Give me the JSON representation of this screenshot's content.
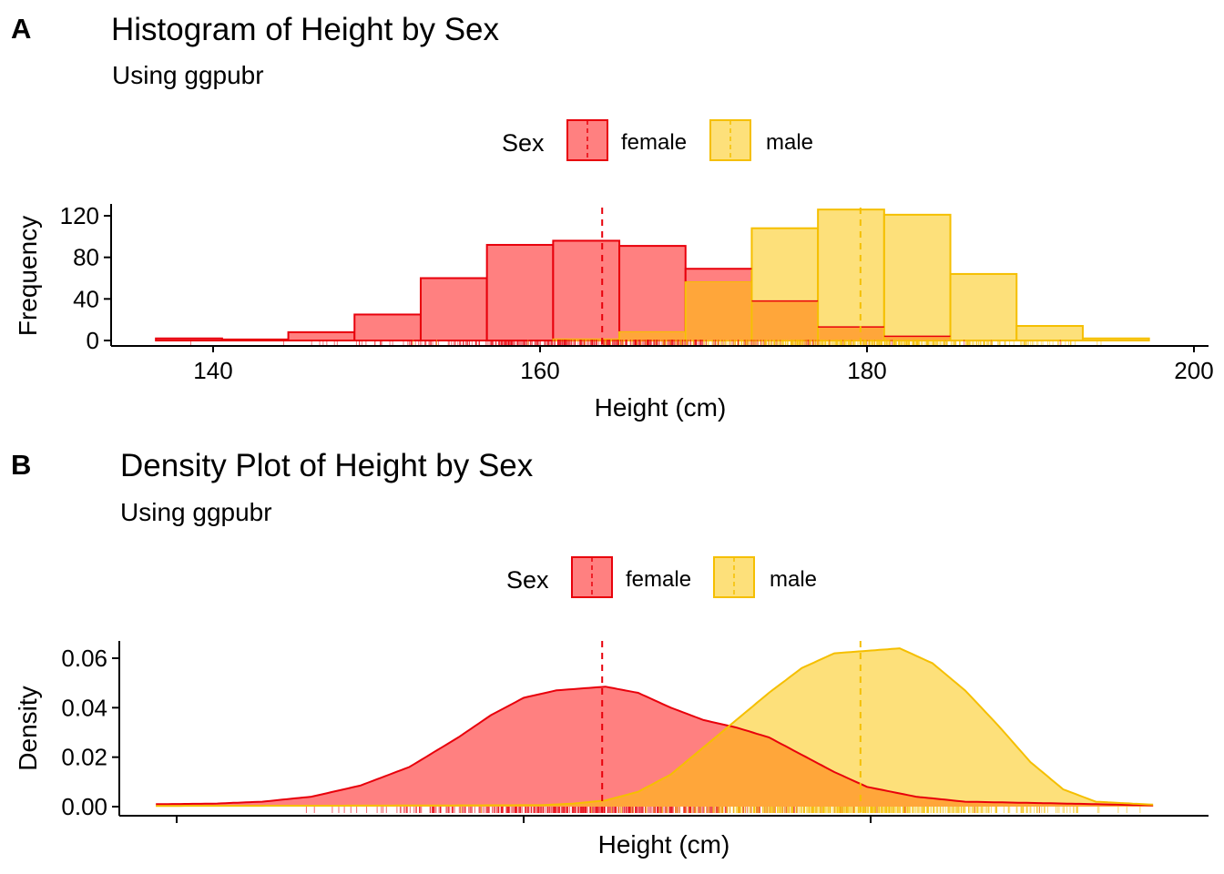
{
  "panels": {
    "a": {
      "tag": "A",
      "title": "Histogram of Height by Sex",
      "subtitle": "Using ggpubr",
      "legend": {
        "title": "Sex",
        "items": [
          "female",
          "male"
        ]
      },
      "xlabel": "Height (cm)",
      "ylabel": "Frequency"
    },
    "b": {
      "tag": "B",
      "title": "Density Plot of Height by Sex",
      "subtitle": "Using ggpubr",
      "legend": {
        "title": "Sex",
        "items": [
          "female",
          "male"
        ]
      },
      "xlabel": "Height (cm)",
      "ylabel": "Density"
    }
  },
  "colors": {
    "female_fill": "#FF8080",
    "female_line": "#E8000B",
    "male_fill": "#FDE07A",
    "male_line": "#F5BF00",
    "overlap_fill": "#FFA63A"
  },
  "chart_data": [
    {
      "type": "histogram",
      "title": "Histogram of Height by Sex",
      "subtitle": "Using ggpubr",
      "xlabel": "Height (cm)",
      "ylabel": "Frequency",
      "legend_title": "Sex",
      "legend_position": "top",
      "xlim": [
        134,
        201
      ],
      "ylim": [
        0,
        130
      ],
      "x_ticks": [
        140,
        160,
        180,
        200
      ],
      "y_ticks": [
        0,
        40,
        80,
        120
      ],
      "bin_edges": [
        136.5,
        140.55,
        144.6,
        148.65,
        152.7,
        156.75,
        160.8,
        164.85,
        168.9,
        172.95,
        177.0,
        181.05,
        185.1,
        189.15,
        193.2,
        197.25
      ],
      "series": [
        {
          "name": "female",
          "counts": [
            2,
            1,
            8,
            25,
            60,
            92,
            96,
            91,
            69,
            38,
            13,
            4,
            0,
            0,
            0
          ],
          "mean": 163.8
        },
        {
          "name": "male",
          "counts": [
            0,
            0,
            0,
            0,
            0,
            0,
            1,
            8,
            56,
            108,
            126,
            121,
            64,
            14,
            2
          ],
          "mean": 179.6
        }
      ],
      "rug": true,
      "grid": false
    },
    {
      "type": "area",
      "title": "Density Plot of Height by Sex",
      "subtitle": "Using ggpubr",
      "xlabel": "Height (cm)",
      "ylabel": "Density",
      "legend_title": "Sex",
      "legend_position": "top",
      "xlim": [
        134,
        201
      ],
      "ylim": [
        0,
        0.066
      ],
      "x_ticks": [
        140,
        160,
        180,
        200
      ],
      "x_tick_labels_shown": false,
      "y_ticks": [
        0.0,
        0.02,
        0.04,
        0.06
      ],
      "y_tick_labels": [
        "0.00",
        "0.02",
        "0.04",
        "0.06"
      ],
      "series": [
        {
          "name": "female",
          "mean": 163.8,
          "x": [
            136.5,
            140,
            143,
            146,
            149,
            152,
            155,
            157,
            159,
            161,
            163,
            164,
            166,
            168,
            170,
            172,
            174,
            176,
            178,
            180,
            183,
            186,
            190,
            194,
            197.5
          ],
          "y": [
            0.001,
            0.0012,
            0.002,
            0.004,
            0.0085,
            0.016,
            0.028,
            0.037,
            0.044,
            0.047,
            0.048,
            0.0485,
            0.046,
            0.04,
            0.035,
            0.032,
            0.028,
            0.021,
            0.014,
            0.008,
            0.004,
            0.002,
            0.0015,
            0.001,
            0.0005
          ]
        },
        {
          "name": "male",
          "mean": 179.6,
          "x": [
            136.5,
            150,
            160,
            162,
            164,
            166,
            168,
            170,
            172,
            174,
            176,
            178,
            180,
            182,
            184,
            186,
            188,
            190,
            192,
            194,
            197.5
          ],
          "y": [
            0.0003,
            0.0004,
            0.0006,
            0.0012,
            0.0025,
            0.006,
            0.013,
            0.024,
            0.035,
            0.046,
            0.056,
            0.062,
            0.063,
            0.064,
            0.058,
            0.047,
            0.033,
            0.018,
            0.007,
            0.002,
            0.0008
          ]
        }
      ],
      "rug": true,
      "grid": false
    }
  ]
}
